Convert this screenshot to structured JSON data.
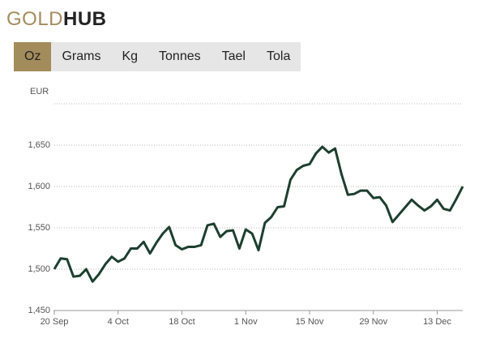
{
  "logo": {
    "gold": "GOLD",
    "hub": "HUB"
  },
  "tabs": [
    "Oz",
    "Grams",
    "Kg",
    "Tonnes",
    "Tael",
    "Tola"
  ],
  "active_tab": 0,
  "chart_data": {
    "type": "line",
    "y_label": "EUR",
    "categories": [
      "20 Sep",
      null,
      null,
      null,
      null,
      null,
      null,
      null,
      null,
      null,
      "4 Oct",
      null,
      null,
      null,
      null,
      null,
      null,
      null,
      null,
      null,
      "18 Oct",
      null,
      null,
      null,
      null,
      null,
      null,
      null,
      null,
      null,
      "1 Nov",
      null,
      null,
      null,
      null,
      null,
      null,
      null,
      null,
      null,
      "15 Nov",
      null,
      null,
      null,
      null,
      null,
      null,
      null,
      null,
      null,
      "29 Nov",
      null,
      null,
      null,
      null,
      null,
      null,
      null,
      null,
      null,
      "13 Dec",
      null,
      null,
      null,
      null
    ],
    "series": [
      {
        "color": "#1d3f2f",
        "values": [
          1500,
          1513,
          1512,
          1491,
          1492,
          1500,
          1485,
          1494,
          1506,
          1515,
          1509,
          1513,
          1525,
          1525,
          1533,
          1519,
          1532,
          1543,
          1551,
          1529,
          1524,
          1527,
          1527,
          1529,
          1553,
          1555,
          1539,
          1546,
          1547,
          1525,
          1548,
          1543,
          1523,
          1556,
          1563,
          1575,
          1576,
          1608,
          1620,
          1625,
          1627,
          1640,
          1648,
          1641,
          1646,
          1615,
          1590,
          1591,
          1595,
          1595,
          1586,
          1587,
          1577,
          1557,
          1566,
          1575,
          1584,
          1577,
          1571,
          1576,
          1584,
          1573,
          1571,
          1585,
          1600
        ]
      }
    ],
    "ylim": [
      1450,
      1700
    ],
    "yticks": [
      {
        "value": 1450,
        "label": "1,450"
      },
      {
        "value": 1500,
        "label": "1,500"
      },
      {
        "value": 1550,
        "label": "1,550"
      },
      {
        "value": 1600,
        "label": "1,600"
      },
      {
        "value": 1650,
        "label": "1,650"
      }
    ],
    "grid": true
  }
}
